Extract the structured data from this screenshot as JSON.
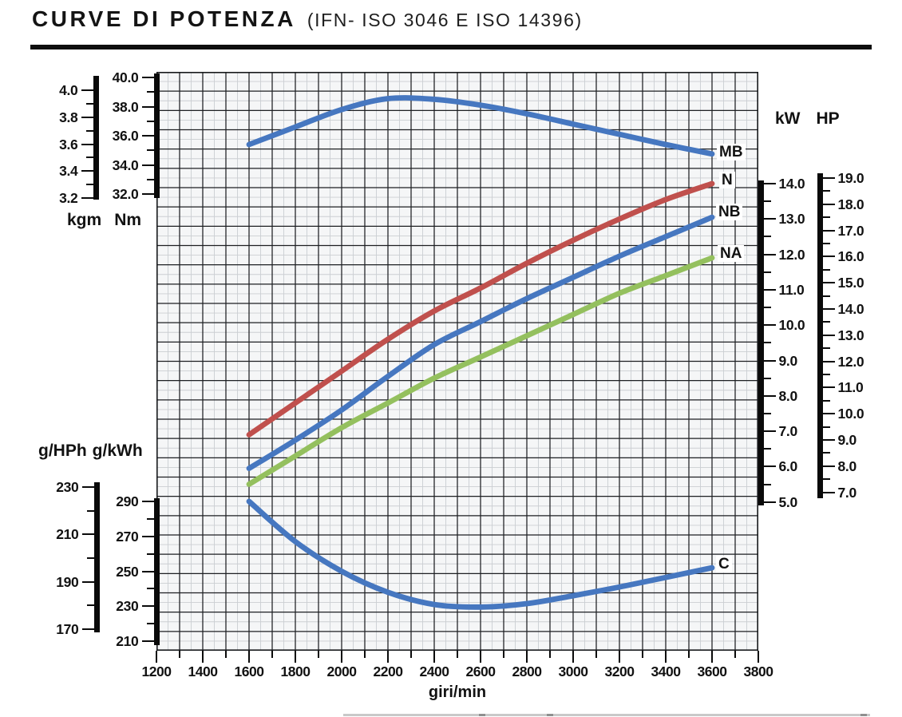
{
  "header": {
    "title_bold": "CURVE DI POTENZA",
    "title_rest": "(IFN- ISO 3046 E ISO 14396)"
  },
  "chart_data": {
    "type": "line",
    "title": "CURVE DI POTENZA (IFN- ISO 3046 E ISO 14396)",
    "grid": "graph-paper, minor subgrid at half pitch",
    "x": {
      "label": "giri/min",
      "min": 1200,
      "max": 3800,
      "tick_step": 200,
      "minor_step": 100,
      "ticks": [
        "1200",
        "1400",
        "1600",
        "1800",
        "2000",
        "2200",
        "2400",
        "2600",
        "2800",
        "3000",
        "3200",
        "3400",
        "3600",
        "3800"
      ]
    },
    "axes": {
      "torque": {
        "kgm": {
          "label": "kgm",
          "ticks": [
            "4.0",
            "3.8",
            "3.6",
            "3.4",
            "3.2"
          ]
        },
        "nm": {
          "label": "Nm",
          "ticks": [
            "40.0",
            "38.0",
            "36.0",
            "34.0",
            "32.0"
          ]
        }
      },
      "power": {
        "kw": {
          "label": "kW",
          "ticks": [
            "14.0",
            "13.0",
            "12.0",
            "11.0",
            "10.0",
            "9.0",
            "8.0",
            "7.0",
            "6.0",
            "5.0"
          ]
        },
        "hp": {
          "label": "HP",
          "ticks": [
            "19.0",
            "18.0",
            "17.0",
            "16.0",
            "15.0",
            "14.0",
            "13.0",
            "12.0",
            "11.0",
            "10.0",
            "9.0",
            "8.0",
            "7.0"
          ]
        }
      },
      "consumption": {
        "g_hph": {
          "label": "g/HPh",
          "ticks": [
            "230",
            "210",
            "190",
            "170"
          ]
        },
        "g_kwh": {
          "label": "g/kWh",
          "ticks": [
            "290",
            "270",
            "250",
            "230",
            "210"
          ]
        }
      }
    },
    "rpm_points": [
      1600,
      1800,
      2000,
      2200,
      2400,
      2600,
      2800,
      3000,
      3200,
      3400,
      3600
    ],
    "series": [
      {
        "name": "MB",
        "unit": "Nm",
        "color": "#4677c0",
        "values": [
          35.4,
          36.6,
          37.8,
          38.55,
          38.5,
          38.1,
          37.5,
          36.8,
          36.1,
          35.4,
          34.75
        ]
      },
      {
        "name": "N",
        "unit": "kW",
        "color": "#c0504d",
        "values": [
          6.9,
          7.8,
          8.7,
          9.6,
          10.4,
          11.05,
          11.75,
          12.4,
          13.0,
          13.55,
          14.0
        ]
      },
      {
        "name": "NB",
        "unit": "kW",
        "color": "#4677c0",
        "values": [
          5.95,
          6.75,
          7.6,
          8.55,
          9.45,
          10.1,
          10.75,
          11.35,
          11.95,
          12.5,
          13.05
        ]
      },
      {
        "name": "NA",
        "unit": "kW",
        "color": "#94c05e",
        "values": [
          5.5,
          6.3,
          7.1,
          7.8,
          8.5,
          9.1,
          9.7,
          10.3,
          10.9,
          11.4,
          11.9
        ]
      },
      {
        "name": "C",
        "unit": "g/kWh",
        "color": "#4677c0",
        "values": [
          290,
          267,
          250,
          238,
          231,
          229.5,
          231.5,
          236,
          241,
          246.5,
          252
        ]
      }
    ]
  }
}
